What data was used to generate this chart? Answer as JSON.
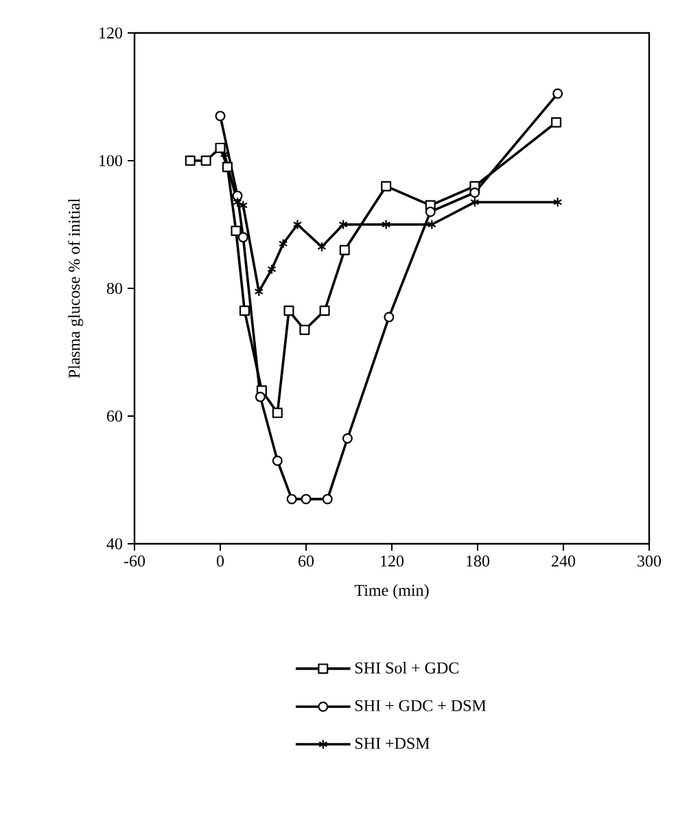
{
  "chart_data": {
    "type": "line",
    "xlabel": "Time (min)",
    "ylabel": "Plasma glucose % of initial",
    "xlim": [
      -60,
      300
    ],
    "xticks": [
      -60,
      0,
      60,
      120,
      180,
      240,
      300
    ],
    "ylim": [
      40,
      120
    ],
    "yticks": [
      40,
      60,
      80,
      100,
      120
    ],
    "grid": false,
    "legend": "bottom",
    "line_style": "solid",
    "series": [
      {
        "name": "SHI Sol + GDC",
        "color": "#000000",
        "marker": "square",
        "x": [
          -21,
          -10,
          0,
          5,
          11,
          17,
          29,
          40,
          48,
          59,
          73,
          87,
          116,
          147,
          178,
          235
        ],
        "values": [
          100,
          100,
          102,
          99,
          89,
          76.5,
          64,
          60.5,
          76.5,
          73.5,
          76.5,
          86,
          96,
          93,
          96,
          106
        ]
      },
      {
        "name": "SHI + GDC + DSM",
        "color": "#000000",
        "marker": "circle",
        "x": [
          0,
          12,
          16,
          28,
          40,
          50,
          60,
          75,
          89,
          118,
          147,
          178,
          236
        ],
        "values": [
          107,
          94.5,
          88,
          63,
          53,
          47,
          47,
          47,
          56.5,
          75.5,
          92,
          95,
          110.5
        ]
      },
      {
        "name": "SHI +DSM",
        "color": "#000000",
        "marker": "cross",
        "x": [
          3,
          12,
          16,
          27,
          36,
          44,
          54,
          71,
          86,
          116,
          148,
          178,
          236
        ],
        "values": [
          101,
          93.5,
          93,
          79.5,
          83,
          87,
          90,
          86.5,
          90,
          90,
          90,
          93.5,
          93.5
        ]
      }
    ]
  }
}
